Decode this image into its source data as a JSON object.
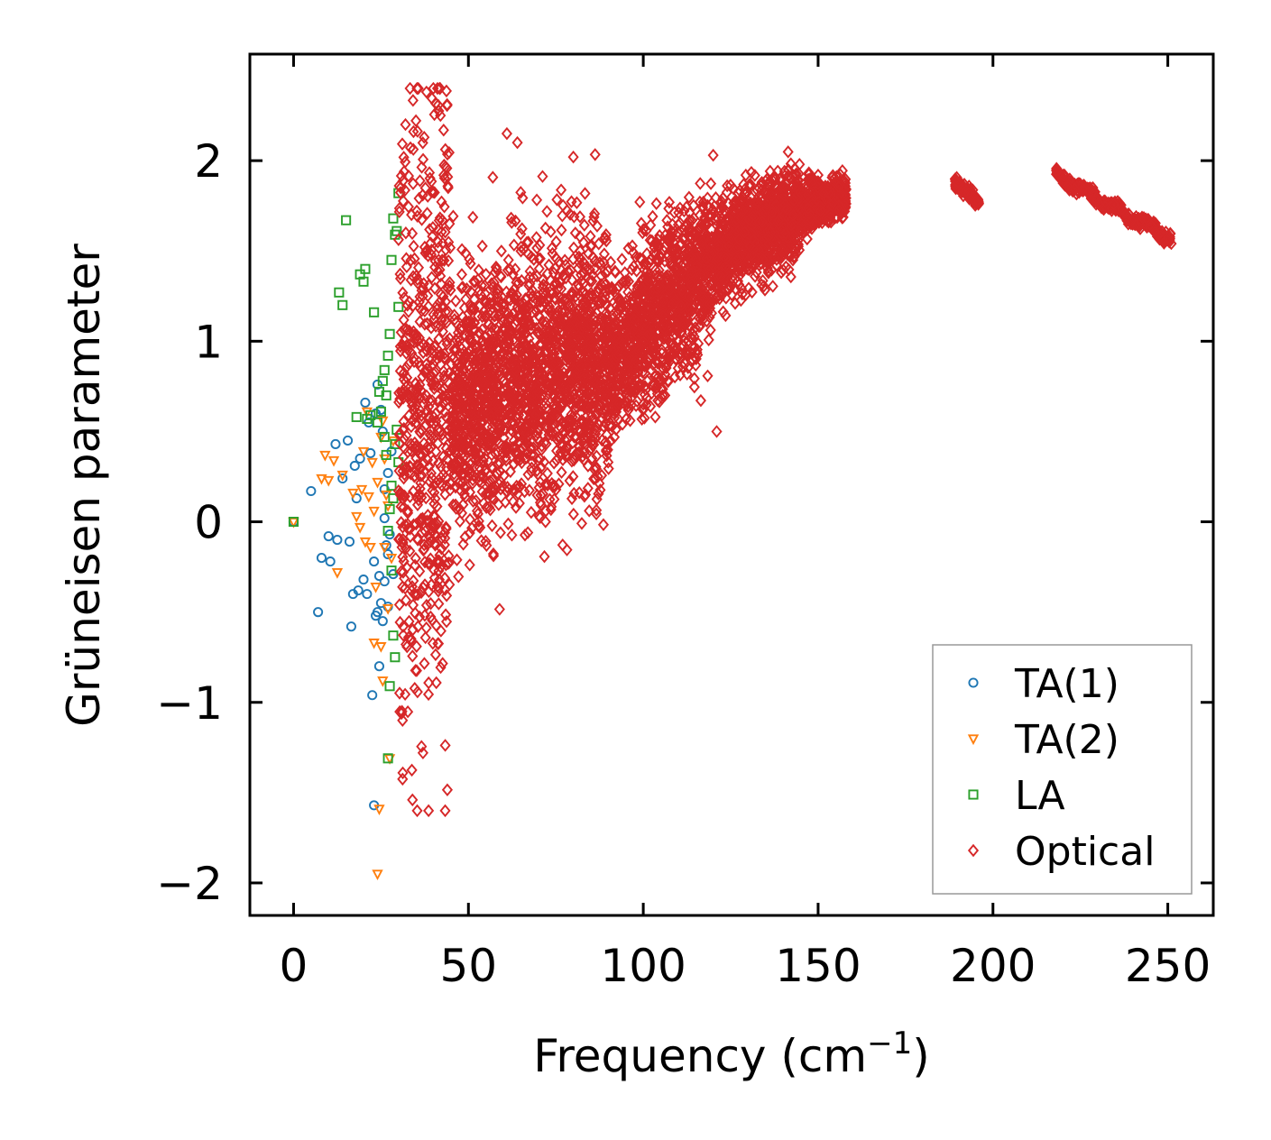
{
  "chart_data": {
    "type": "scatter",
    "title": "",
    "xlabel": "Frequency (cm",
    "xlabel_sup": "−1",
    "xlabel_suffix": ")",
    "ylabel": "Grüneisen parameter",
    "xlim": [
      -12.5,
      263
    ],
    "ylim": [
      -2.18,
      2.59
    ],
    "xticks": [
      0,
      50,
      100,
      150,
      200,
      250
    ],
    "xtick_labels": [
      "0",
      "50",
      "100",
      "150",
      "200",
      "250"
    ],
    "yticks": [
      -2,
      -1,
      0,
      1,
      2
    ],
    "ytick_labels": [
      "−2",
      "−1",
      "0",
      "1",
      "2"
    ],
    "grid": false,
    "legend_position": "bottom-right",
    "series": [
      {
        "name": "TA(1)",
        "marker": "circle",
        "color": "#1f77b4",
        "points": [
          [
            0,
            0
          ],
          [
            5,
            0.17
          ],
          [
            7,
            -0.5
          ],
          [
            8,
            -0.2
          ],
          [
            10,
            -0.08
          ],
          [
            10.5,
            -0.22
          ],
          [
            12,
            0.43
          ],
          [
            12.5,
            -0.1
          ],
          [
            14,
            0.24
          ],
          [
            15.5,
            0.45
          ],
          [
            16,
            -0.11
          ],
          [
            16.5,
            -0.58
          ],
          [
            17,
            -0.4
          ],
          [
            17.5,
            0.31
          ],
          [
            18,
            0.13
          ],
          [
            18.5,
            -0.38
          ],
          [
            19,
            0.35
          ],
          [
            20,
            -0.32
          ],
          [
            20.5,
            0.66
          ],
          [
            21,
            -0.4
          ],
          [
            21.5,
            0.55
          ],
          [
            22,
            0.38
          ],
          [
            22.5,
            -0.96
          ],
          [
            23,
            -1.57
          ],
          [
            23,
            -0.22
          ],
          [
            23.5,
            0.6
          ],
          [
            24,
            -0.5
          ],
          [
            24,
            0.76
          ],
          [
            24.5,
            -0.8
          ],
          [
            25,
            -0.45
          ],
          [
            25,
            0.62
          ],
          [
            25.5,
            -0.55
          ],
          [
            26,
            -0.33
          ],
          [
            26,
            0.18
          ],
          [
            26.5,
            -0.13
          ],
          [
            27,
            0.27
          ],
          [
            27,
            -0.47
          ],
          [
            27.5,
            -0.07
          ],
          [
            28,
            0.39
          ],
          [
            28.5,
            -0.29
          ],
          [
            23.5,
            -0.52
          ],
          [
            24.5,
            -0.3
          ],
          [
            25.5,
            0.5
          ],
          [
            26,
            0.02
          ],
          [
            27,
            -0.18
          ]
        ]
      },
      {
        "name": "TA(2)",
        "marker": "triangle",
        "color": "#ff7f0e",
        "points": [
          [
            0,
            0
          ],
          [
            8,
            0.24
          ],
          [
            9,
            0.37
          ],
          [
            10,
            0.23
          ],
          [
            11.5,
            0.34
          ],
          [
            12.5,
            -0.28
          ],
          [
            14,
            0.26
          ],
          [
            17,
            0.16
          ],
          [
            18,
            0.03
          ],
          [
            19,
            -0.03
          ],
          [
            19.5,
            0.18
          ],
          [
            20,
            0.39
          ],
          [
            20.5,
            -0.11
          ],
          [
            21,
            0.61
          ],
          [
            21.5,
            0.14
          ],
          [
            22,
            -0.14
          ],
          [
            22.5,
            0.33
          ],
          [
            23,
            0.06
          ],
          [
            23.5,
            -0.36
          ],
          [
            24,
            -1.95
          ],
          [
            24.5,
            -1.59
          ],
          [
            25,
            0.47
          ],
          [
            25,
            -0.69
          ],
          [
            25.5,
            -0.88
          ],
          [
            26,
            0.35
          ],
          [
            26.5,
            0.15
          ],
          [
            27,
            -0.48
          ],
          [
            27.5,
            -1.31
          ],
          [
            28,
            -0.2
          ],
          [
            28.5,
            0.45
          ],
          [
            24,
            0.22
          ],
          [
            26,
            -0.14
          ],
          [
            27,
            0.09
          ],
          [
            25.5,
            0.56
          ],
          [
            23,
            -0.67
          ]
        ]
      },
      {
        "name": "LA",
        "marker": "square",
        "color": "#2ca02c",
        "points": [
          [
            0,
            0
          ],
          [
            13,
            1.27
          ],
          [
            14,
            1.2
          ],
          [
            15,
            1.67
          ],
          [
            18,
            0.58
          ],
          [
            19,
            1.37
          ],
          [
            20,
            1.33
          ],
          [
            20.5,
            1.4
          ],
          [
            21,
            0.57
          ],
          [
            22,
            0.59
          ],
          [
            23,
            1.16
          ],
          [
            24,
            0.55
          ],
          [
            24.5,
            0.72
          ],
          [
            25,
            0.61
          ],
          [
            25.5,
            0.78
          ],
          [
            26,
            0.84
          ],
          [
            26.5,
            0.7
          ],
          [
            27,
            0.92
          ],
          [
            27.5,
            1.04
          ],
          [
            28,
            1.45
          ],
          [
            28.5,
            1.68
          ],
          [
            29,
            1.59
          ],
          [
            29.5,
            1.61
          ],
          [
            30,
            1.82
          ],
          [
            30,
            1.19
          ],
          [
            29,
            0.43
          ],
          [
            28,
            0.2
          ],
          [
            27.5,
            0.07
          ],
          [
            27,
            -0.05
          ],
          [
            28,
            -0.27
          ],
          [
            28.5,
            -0.63
          ],
          [
            29,
            -0.75
          ],
          [
            27.5,
            -0.91
          ],
          [
            27,
            -1.31
          ],
          [
            26.5,
            0.37
          ],
          [
            29.5,
            0.51
          ],
          [
            30,
            0.33
          ],
          [
            28.5,
            0.13
          ],
          [
            26,
            0.47
          ]
        ]
      },
      {
        "name": "Optical",
        "marker": "diamond",
        "color": "#d62728",
        "generated": true,
        "sample_points": [
          [
            38,
            2.38
          ],
          [
            42,
            2.25
          ],
          [
            32,
            2.2
          ],
          [
            61,
            2.15
          ],
          [
            64,
            2.1
          ],
          [
            80,
            2.02
          ],
          [
            120,
            2.03
          ],
          [
            150,
            1.92
          ],
          [
            156,
            1.75
          ],
          [
            190,
            1.88
          ],
          [
            195,
            1.77
          ],
          [
            220,
            1.92
          ],
          [
            250,
            1.57
          ],
          [
            34,
            -1.54
          ],
          [
            37,
            -1.28
          ],
          [
            31,
            -1.05
          ],
          [
            121,
            0.5
          ],
          [
            67,
            -0.06
          ],
          [
            42,
            -0.25
          ]
        ]
      }
    ]
  }
}
